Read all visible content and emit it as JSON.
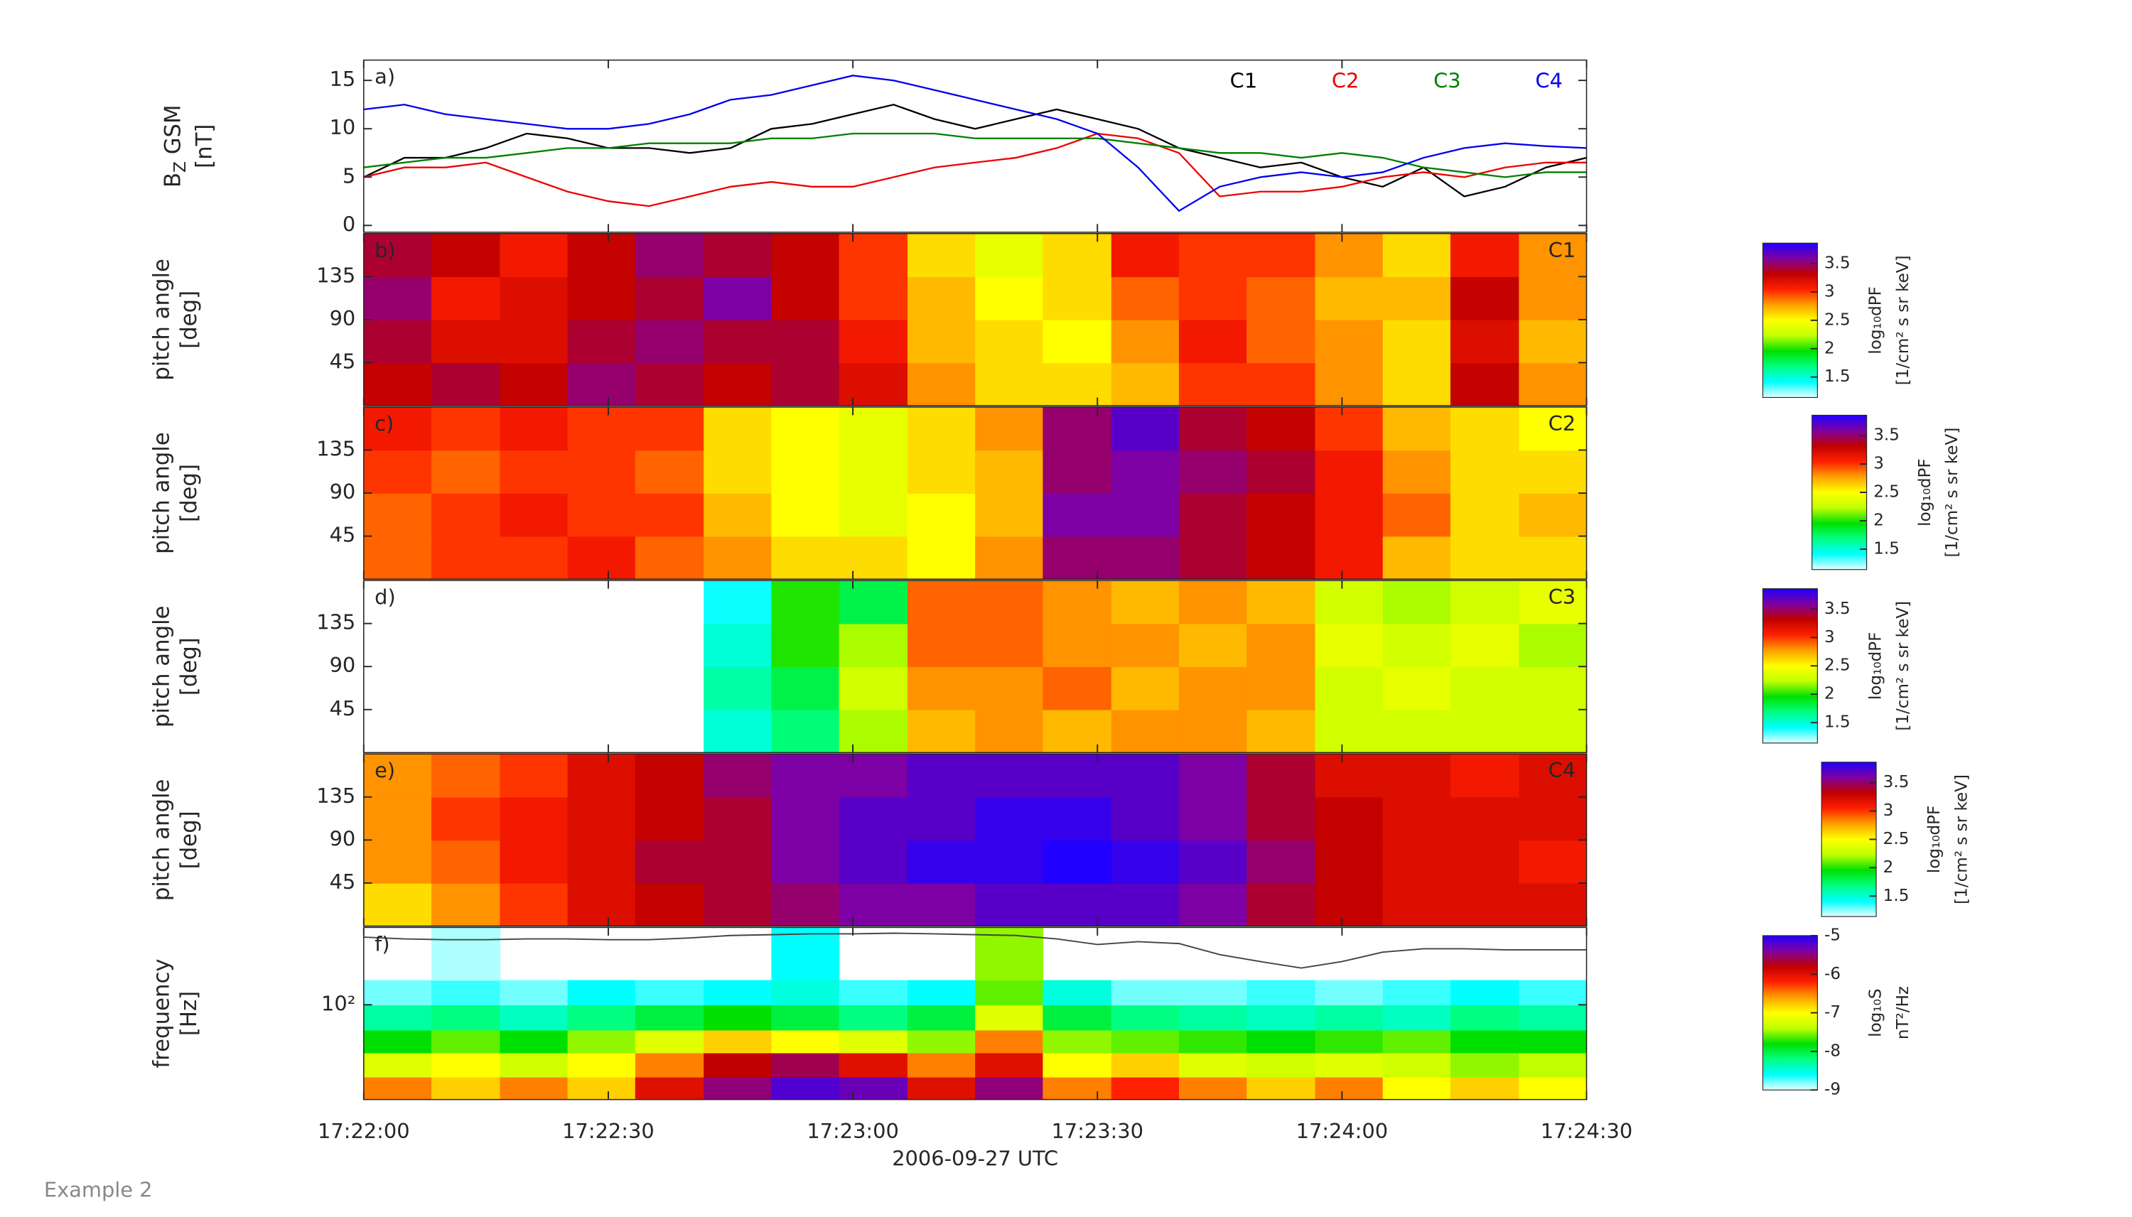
{
  "caption": "Example 2",
  "colormap": [
    "#e8ffff",
    "#00ffff",
    "#00ff80",
    "#00e000",
    "#c0ff00",
    "#ffff00",
    "#ffa000",
    "#ff2000",
    "#c00000",
    "#8000a0",
    "#2000ff"
  ],
  "chart_data": [
    {
      "type": "line",
      "panel_label": "a)",
      "ylabel": {
        "symbol": "B",
        "subscript": "Z",
        "suffix": " GSM",
        "unit": "[nT]"
      },
      "x": [
        0,
        5,
        10,
        15,
        20,
        25,
        30,
        35,
        40,
        45,
        50,
        55,
        60,
        65,
        70,
        75,
        80,
        85,
        90,
        95,
        100,
        105,
        110,
        115,
        120,
        125,
        130,
        135,
        140,
        145,
        150
      ],
      "xlim": [
        0,
        150
      ],
      "ylim": [
        -0.7,
        17.1
      ],
      "yticks": [
        0,
        5,
        10,
        15
      ],
      "series": [
        {
          "name": "C1",
          "color": "#000000",
          "values": [
            5,
            7,
            7,
            8,
            9.5,
            9,
            8,
            8,
            7.5,
            8,
            10,
            10.5,
            11.5,
            12.5,
            11,
            10,
            11,
            12,
            11,
            10,
            8,
            7,
            6,
            6.5,
            5,
            4,
            6,
            3,
            4,
            6,
            7
          ]
        },
        {
          "name": "C2",
          "color": "#ee0000",
          "values": [
            5,
            6,
            6,
            6.5,
            5,
            3.5,
            2.5,
            2,
            3,
            4,
            4.5,
            4,
            4,
            5,
            6,
            6.5,
            7,
            8,
            9.5,
            9,
            7.5,
            3,
            3.5,
            3.5,
            4,
            5,
            5.5,
            5,
            6,
            6.5,
            6.5
          ]
        },
        {
          "name": "C3",
          "color": "#008000",
          "values": [
            6,
            6.5,
            7,
            7,
            7.5,
            8,
            8,
            8.5,
            8.5,
            8.5,
            9,
            9,
            9.5,
            9.5,
            9.5,
            9,
            9,
            9,
            9,
            8.5,
            8,
            7.5,
            7.5,
            7,
            7.5,
            7,
            6,
            5.5,
            5,
            5.5,
            5.5
          ]
        },
        {
          "name": "C4",
          "color": "#0000ee",
          "values": [
            12,
            12.5,
            11.5,
            11,
            10.5,
            10,
            10,
            10.5,
            11.5,
            13,
            13.5,
            14.5,
            15.5,
            15,
            14,
            13,
            12,
            11,
            9.5,
            6,
            1.5,
            4,
            5,
            5.5,
            5,
            5.5,
            7,
            8,
            8.5,
            8.2,
            8
          ]
        }
      ]
    },
    {
      "type": "heatmap",
      "panel_label": "b)",
      "title": "C1",
      "ylabel": [
        "pitch angle",
        "[deg]"
      ],
      "x_edges": [
        0,
        8.3,
        16.7,
        25,
        33.3,
        41.7,
        50,
        58.3,
        66.7,
        75,
        83.3,
        91.7,
        100,
        108.3,
        116.7,
        125,
        133.3,
        141.7,
        150
      ],
      "y_edges": [
        0,
        45,
        90,
        135,
        180
      ],
      "xlim": [
        0,
        150
      ],
      "ylim": [
        0,
        180
      ],
      "yticks": [
        45,
        90,
        135
      ],
      "clim": [
        1.14,
        3.86
      ],
      "cticks": [
        1.5,
        2,
        2.5,
        3,
        3.5
      ],
      "colorbar_label": [
        "log₁₀dPF",
        "[1/cm² s sr keV]"
      ],
      "values": [
        [
          3.3,
          3.4,
          3.3,
          3.5,
          3.4,
          3.3,
          3.4,
          3.2,
          2.8,
          2.6,
          2.6,
          2.7,
          3.0,
          3.0,
          2.8,
          2.6,
          3.3,
          2.8
        ],
        [
          3.4,
          3.2,
          3.2,
          3.4,
          3.5,
          3.4,
          3.4,
          3.1,
          2.7,
          2.6,
          2.5,
          2.8,
          3.1,
          2.9,
          2.8,
          2.6,
          3.2,
          2.7
        ],
        [
          3.5,
          3.1,
          3.2,
          3.3,
          3.4,
          3.6,
          3.3,
          3.0,
          2.7,
          2.5,
          2.6,
          2.9,
          3.0,
          2.9,
          2.7,
          2.7,
          3.3,
          2.8
        ],
        [
          3.4,
          3.3,
          3.1,
          3.3,
          3.5,
          3.4,
          3.3,
          3.0,
          2.6,
          2.4,
          2.6,
          3.1,
          3.0,
          3.0,
          2.8,
          2.6,
          3.1,
          2.8
        ]
      ]
    },
    {
      "type": "heatmap",
      "panel_label": "c)",
      "title": "C2",
      "ylabel": [
        "pitch angle",
        "[deg]"
      ],
      "x_edges": [
        0,
        8.3,
        16.7,
        25,
        33.3,
        41.7,
        50,
        58.3,
        66.7,
        75,
        83.3,
        91.7,
        100,
        108.3,
        116.7,
        125,
        133.3,
        141.7,
        150
      ],
      "y_edges": [
        0,
        45,
        90,
        135,
        180
      ],
      "xlim": [
        0,
        150
      ],
      "ylim": [
        0,
        180
      ],
      "yticks": [
        45,
        90,
        135
      ],
      "clim": [
        1.14,
        3.86
      ],
      "cticks": [
        1.5,
        2,
        2.5,
        3,
        3.5
      ],
      "colorbar_label": [
        "log₁₀dPF",
        "[1/cm² s sr keV]"
      ],
      "values": [
        [
          2.9,
          3.0,
          3.0,
          3.1,
          2.9,
          2.8,
          2.6,
          2.6,
          2.5,
          2.8,
          3.5,
          3.5,
          3.4,
          3.3,
          3.1,
          2.7,
          2.6,
          2.6
        ],
        [
          2.9,
          3.0,
          3.1,
          3.0,
          3.0,
          2.7,
          2.5,
          2.4,
          2.5,
          2.7,
          3.6,
          3.6,
          3.4,
          3.3,
          3.1,
          2.9,
          2.6,
          2.7
        ],
        [
          3.0,
          2.9,
          3.0,
          3.0,
          2.9,
          2.6,
          2.5,
          2.4,
          2.6,
          2.7,
          3.5,
          3.6,
          3.5,
          3.4,
          3.1,
          2.8,
          2.6,
          2.6
        ],
        [
          3.1,
          3.0,
          3.1,
          3.0,
          3.0,
          2.6,
          2.5,
          2.4,
          2.6,
          2.8,
          3.5,
          3.7,
          3.4,
          3.3,
          3.0,
          2.7,
          2.6,
          2.5
        ]
      ]
    },
    {
      "type": "heatmap",
      "panel_label": "d)",
      "title": "C3",
      "ylabel": [
        "pitch angle",
        "[deg]"
      ],
      "x_edges": [
        0,
        8.3,
        16.7,
        25,
        33.3,
        41.7,
        50,
        58.3,
        66.7,
        75,
        83.3,
        91.7,
        100,
        108.3,
        116.7,
        125,
        133.3,
        141.7,
        150
      ],
      "y_edges": [
        0,
        45,
        90,
        135,
        180
      ],
      "xlim": [
        0,
        150
      ],
      "ylim": [
        0,
        180
      ],
      "yticks": [
        45,
        90,
        135
      ],
      "clim": [
        1.14,
        3.86
      ],
      "cticks": [
        1.5,
        2,
        2.5,
        3,
        3.5
      ],
      "colorbar_label": [
        "log₁₀dPF",
        "[1/cm² s sr keV]"
      ],
      "values": [
        [
          null,
          null,
          null,
          null,
          null,
          1.5,
          1.7,
          2.2,
          2.7,
          2.8,
          2.7,
          2.8,
          2.8,
          2.7,
          2.3,
          2.3,
          2.3,
          2.3
        ],
        [
          null,
          null,
          null,
          null,
          null,
          1.6,
          1.8,
          2.3,
          2.8,
          2.8,
          2.9,
          2.7,
          2.8,
          2.8,
          2.3,
          2.4,
          2.3,
          2.3
        ],
        [
          null,
          null,
          null,
          null,
          null,
          1.5,
          2.0,
          2.2,
          2.9,
          2.9,
          2.8,
          2.8,
          2.7,
          2.8,
          2.4,
          2.3,
          2.4,
          2.2
        ],
        [
          null,
          null,
          null,
          null,
          null,
          1.4,
          2.0,
          1.8,
          2.9,
          2.9,
          2.8,
          2.7,
          2.8,
          2.7,
          2.3,
          2.2,
          2.3,
          2.4
        ]
      ]
    },
    {
      "type": "heatmap",
      "panel_label": "e)",
      "title": "C4",
      "ylabel": [
        "pitch angle",
        "[deg]"
      ],
      "x_edges": [
        0,
        8.3,
        16.7,
        25,
        33.3,
        41.7,
        50,
        58.3,
        66.7,
        75,
        83.3,
        91.7,
        100,
        108.3,
        116.7,
        125,
        133.3,
        141.7,
        150
      ],
      "y_edges": [
        0,
        45,
        90,
        135,
        180
      ],
      "xlim": [
        0,
        150
      ],
      "ylim": [
        0,
        180
      ],
      "yticks": [
        45,
        90,
        135
      ],
      "clim": [
        1.14,
        3.86
      ],
      "cticks": [
        1.5,
        2,
        2.5,
        3,
        3.5
      ],
      "colorbar_label": [
        "log₁₀dPF",
        "[1/cm² s sr keV]"
      ],
      "values": [
        [
          2.6,
          2.8,
          3.0,
          3.2,
          3.3,
          3.4,
          3.5,
          3.6,
          3.6,
          3.7,
          3.7,
          3.7,
          3.6,
          3.4,
          3.3,
          3.2,
          3.2,
          3.2
        ],
        [
          2.8,
          2.9,
          3.1,
          3.2,
          3.4,
          3.4,
          3.6,
          3.7,
          3.8,
          3.8,
          3.9,
          3.8,
          3.7,
          3.5,
          3.3,
          3.2,
          3.2,
          3.1
        ],
        [
          2.8,
          3.0,
          3.1,
          3.2,
          3.3,
          3.4,
          3.6,
          3.7,
          3.7,
          3.8,
          3.8,
          3.7,
          3.6,
          3.4,
          3.3,
          3.2,
          3.2,
          3.2
        ],
        [
          2.8,
          2.9,
          3.0,
          3.2,
          3.3,
          3.5,
          3.6,
          3.6,
          3.7,
          3.7,
          3.7,
          3.7,
          3.6,
          3.4,
          3.2,
          3.2,
          3.1,
          3.2
        ]
      ]
    },
    {
      "type": "spectrogram",
      "panel_label": "f)",
      "ylabel": [
        "frequency",
        "[Hz]"
      ],
      "yscale": "log",
      "x_edges": [
        0,
        8.3,
        16.7,
        25,
        33.3,
        41.7,
        50,
        58.3,
        66.7,
        75,
        83.3,
        91.7,
        100,
        108.3,
        116.7,
        125,
        133.3,
        141.7,
        150
      ],
      "y_edges": [
        10.5,
        18,
        32,
        55,
        100,
        180,
        630
      ],
      "xlim": [
        0,
        150
      ],
      "ylim": [
        10.5,
        630
      ],
      "yticks": [
        {
          "value": 100,
          "label": "10²"
        }
      ],
      "xticks": [
        {
          "value": 0,
          "label": "17:22:00"
        },
        {
          "value": 30,
          "label": "17:22:30"
        },
        {
          "value": 60,
          "label": "17:23:00"
        },
        {
          "value": 90,
          "label": "17:23:30"
        },
        {
          "value": 120,
          "label": "17:24:00"
        },
        {
          "value": 150,
          "label": "17:24:30"
        }
      ],
      "xlabel": "2006-09-27 UTC",
      "clim": [
        -9,
        -5
      ],
      "cticks": [
        -9,
        -8,
        -7,
        -6,
        -5
      ],
      "colorbar_label": [
        "log₁₀S",
        "nT²/Hz"
      ],
      "values": [
        [
          -6.5,
          -6.8,
          -6.5,
          -6.8,
          -6.0,
          -5.5,
          -5.2,
          -5.3,
          -6.0,
          -5.5,
          -6.5,
          -6.2,
          -6.5,
          -6.8,
          -6.5,
          -7.0,
          -6.8,
          -7.0
        ],
        [
          -7.2,
          -7.0,
          -7.3,
          -7.0,
          -6.5,
          -5.8,
          -5.6,
          -6.0,
          -6.5,
          -6.0,
          -7.0,
          -6.8,
          -7.2,
          -7.3,
          -7.2,
          -7.3,
          -7.5,
          -7.4
        ],
        [
          -7.8,
          -7.6,
          -7.8,
          -7.5,
          -7.2,
          -6.8,
          -7.0,
          -7.2,
          -7.5,
          -6.5,
          -7.5,
          -7.6,
          -7.7,
          -7.8,
          -7.7,
          -7.6,
          -7.8,
          -7.8
        ],
        [
          -8.3,
          -8.2,
          -8.4,
          -8.2,
          -8.0,
          -7.8,
          -8.0,
          -8.2,
          -8.0,
          -7.2,
          -8.0,
          -8.2,
          -8.3,
          -8.4,
          -8.3,
          -8.4,
          -8.2,
          -8.3
        ],
        [
          -8.8,
          -8.7,
          -8.8,
          -8.6,
          -8.7,
          -8.6,
          -8.5,
          -8.7,
          -8.6,
          -7.6,
          -8.5,
          -8.8,
          -8.8,
          -8.7,
          -8.8,
          -8.7,
          -8.6,
          -8.7
        ],
        [
          null,
          -8.9,
          null,
          null,
          null,
          null,
          -8.6,
          null,
          null,
          -7.5,
          null,
          null,
          null,
          null,
          null,
          null,
          null,
          null
        ]
      ],
      "trace": {
        "color": "#444444",
        "x": [
          0,
          5,
          10,
          15,
          20,
          25,
          30,
          35,
          40,
          45,
          50,
          55,
          60,
          65,
          70,
          75,
          80,
          85,
          90,
          95,
          100,
          105,
          110,
          115,
          120,
          125,
          130,
          135,
          140,
          145,
          150
        ],
        "values": [
          500,
          480,
          470,
          470,
          480,
          480,
          470,
          470,
          490,
          520,
          530,
          540,
          540,
          550,
          540,
          530,
          520,
          480,
          420,
          450,
          430,
          330,
          280,
          240,
          280,
          350,
          380,
          380,
          370,
          370,
          370
        ]
      }
    }
  ]
}
